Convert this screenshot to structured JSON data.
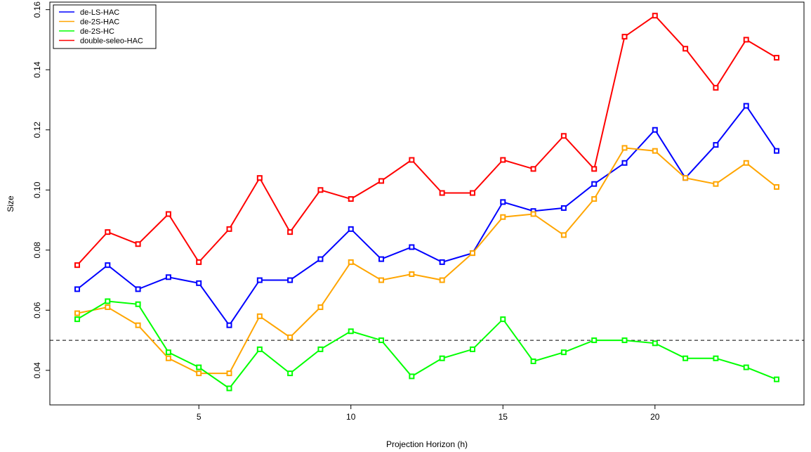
{
  "chart_data": {
    "type": "line",
    "title": "",
    "xlabel": "Projection Horizon (h)",
    "ylabel": "Size",
    "xlim": [
      0.1,
      24.9
    ],
    "ylim": [
      0.0285,
      0.1625
    ],
    "xticks": [
      5,
      10,
      15,
      20
    ],
    "yticks": [
      0.04,
      0.06,
      0.08,
      0.1,
      0.12,
      0.14,
      0.16
    ],
    "ytick_labels": [
      "0.04",
      "0.06",
      "0.08",
      "0.10",
      "0.12",
      "0.14",
      "0.16"
    ],
    "x": [
      1,
      2,
      3,
      4,
      5,
      6,
      7,
      8,
      9,
      10,
      11,
      12,
      13,
      14,
      15,
      16,
      17,
      18,
      19,
      20,
      21,
      22,
      23,
      24
    ],
    "reference_line": {
      "y": 0.05,
      "style": "dashed",
      "color": "#000000"
    },
    "grid": false,
    "legend_position": "top-left",
    "series": [
      {
        "name": "de-LS-HAC",
        "color": "#0000ff",
        "values": [
          0.067,
          0.075,
          0.067,
          0.071,
          0.069,
          0.055,
          0.07,
          0.07,
          0.077,
          0.087,
          0.077,
          0.081,
          0.076,
          0.079,
          0.096,
          0.093,
          0.094,
          0.102,
          0.109,
          0.12,
          0.104,
          0.115,
          0.128,
          0.113
        ]
      },
      {
        "name": "de-2S-HAC",
        "color": "#ffa500",
        "values": [
          0.059,
          0.061,
          0.055,
          0.044,
          0.039,
          0.039,
          0.058,
          0.051,
          0.061,
          0.076,
          0.07,
          0.072,
          0.07,
          0.079,
          0.091,
          0.092,
          0.085,
          0.097,
          0.114,
          0.113,
          0.104,
          0.102,
          0.109,
          0.101
        ]
      },
      {
        "name": "de-2S-HC",
        "color": "#00ff00",
        "values": [
          0.057,
          0.063,
          0.062,
          0.046,
          0.041,
          0.034,
          0.047,
          0.039,
          0.047,
          0.053,
          0.05,
          0.038,
          0.044,
          0.047,
          0.057,
          0.043,
          0.046,
          0.05,
          0.05,
          0.049,
          0.044,
          0.044,
          0.041,
          0.037
        ]
      },
      {
        "name": "double-seleo-HAC",
        "color": "#ff0000",
        "values": [
          0.075,
          0.086,
          0.082,
          0.092,
          0.076,
          0.087,
          0.104,
          0.086,
          0.1,
          0.097,
          0.103,
          0.11,
          0.099,
          0.099,
          0.11,
          0.107,
          0.118,
          0.107,
          0.151,
          0.158,
          0.147,
          0.134,
          0.15,
          0.144
        ]
      }
    ]
  }
}
